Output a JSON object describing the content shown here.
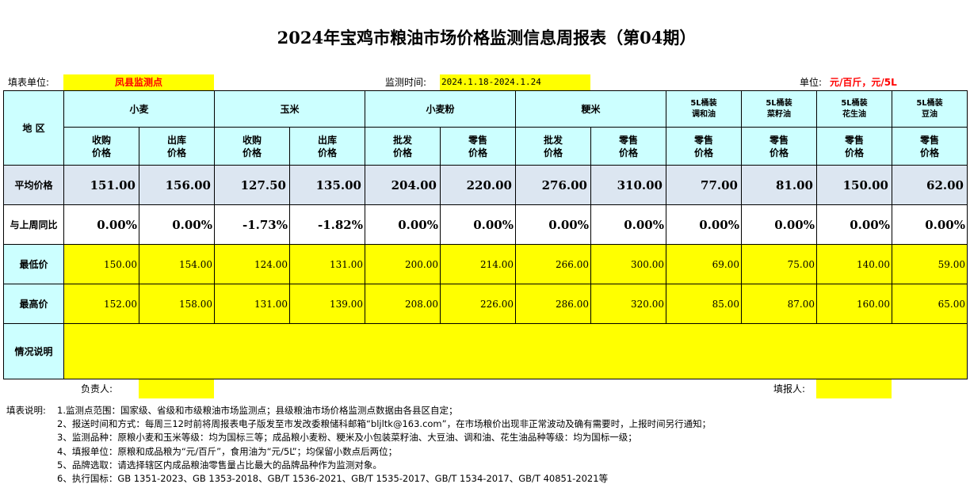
{
  "title": "2024年宝鸡市粮油市场价格监测信息周报表（第04期）",
  "meta": {
    "unit_label": "填表单位:",
    "unit_value": "凤县监测点",
    "period_label": "监测时间:",
    "period_value": "2024.1.18-2024.1.24",
    "units_label": "单位:",
    "units_value": "元/百斤，元/5L"
  },
  "table": {
    "region_header": "地  区",
    "products": [
      {
        "name": "小麦",
        "sub": [
          "收购\n价格",
          "出库\n价格"
        ]
      },
      {
        "name": "玉米",
        "sub": [
          "收购\n价格",
          "出库\n价格"
        ]
      },
      {
        "name": "小麦粉",
        "sub": [
          "批发\n价格",
          "零售\n价格"
        ]
      },
      {
        "name": "粳米",
        "sub": [
          "批发\n价格",
          "零售\n价格"
        ]
      },
      {
        "name": "5L桶装\n调和油",
        "sub": [
          "零售\n价格"
        ]
      },
      {
        "name": "5L桶装\n菜籽油",
        "sub": [
          "零售\n价格"
        ]
      },
      {
        "name": "5L桶装\n花生油",
        "sub": [
          "零售\n价格"
        ]
      },
      {
        "name": "5L桶装\n豆油",
        "sub": [
          "零售\n价格"
        ]
      }
    ],
    "rows": {
      "avg": {
        "label": "平均价格",
        "values": [
          "151.00",
          "156.00",
          "127.50",
          "135.00",
          "204.00",
          "220.00",
          "276.00",
          "310.00",
          "77.00",
          "81.00",
          "150.00",
          "62.00"
        ]
      },
      "change": {
        "label": "与上周同比",
        "values": [
          "0.00%",
          "0.00%",
          "-1.73%",
          "-1.82%",
          "0.00%",
          "0.00%",
          "0.00%",
          "0.00%",
          "0.00%",
          "0.00%",
          "0.00%",
          "0.00%"
        ]
      },
      "min": {
        "label": "最低价",
        "values": [
          "150.00",
          "154.00",
          "124.00",
          "131.00",
          "200.00",
          "214.00",
          "266.00",
          "300.00",
          "69.00",
          "75.00",
          "140.00",
          "59.00"
        ]
      },
      "max": {
        "label": "最高价",
        "values": [
          "152.00",
          "158.00",
          "131.00",
          "139.00",
          "208.00",
          "226.00",
          "286.00",
          "320.00",
          "85.00",
          "87.00",
          "160.00",
          "65.00"
        ]
      },
      "notes": {
        "label": "情况说明",
        "value": ""
      }
    }
  },
  "footer": {
    "manager_label": "负责人:",
    "manager_value": "",
    "filler_label": "填报人:",
    "filler_value": ""
  },
  "instructions": {
    "label": "填表说明:",
    "lines": [
      "1.监测点范围：国家级、省级和市级粮油市场监测点；县级粮油市场价格监测点数据由各县区自定；",
      "2、报送时间和方式：每周三12时前将周报表电子版发至市发改委粮储科邮箱“bljltk@163.com”，在市场粮价出现非正常波动及确有需要时，上报时间另行通知；",
      "3、监测品种：原粮小麦和玉米等级：均为国标三等；成品粮小麦粉、粳米及小包装菜籽油、大豆油、调和油、花生油品种等级：均为国标一级；",
      "4、填报单位：原粮和成品粮为“元/百斤”，食用油为“元/5L”；均保留小数点后两位；",
      "5、品牌选取：请选择辖区内成品粮油零售量占比最大的品牌品种作为监测对象。",
      "6、执行国标：GB 1351-2023、GB 1353-2018、GB/T 1536-2021、GB/T 1535-2017、GB/T 1534-2017、GB/T 40851-2021等"
    ]
  },
  "colors": {
    "header_bg": "#ccffff",
    "avg_bg": "#dce6f1",
    "highlight": "#ffff00",
    "accent_text": "#ff0000"
  }
}
